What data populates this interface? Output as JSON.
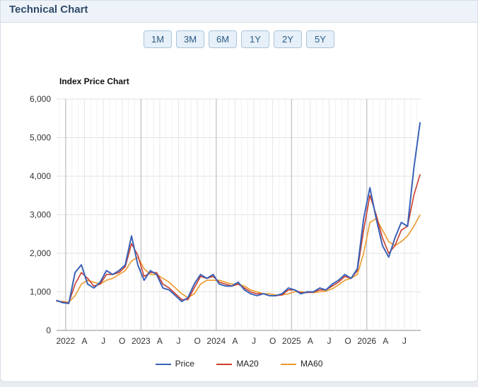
{
  "panel": {
    "title": "Technical Chart"
  },
  "ranges": [
    "1M",
    "3M",
    "6M",
    "1Y",
    "2Y",
    "5Y"
  ],
  "chart_data": {
    "type": "line",
    "title": "Index Price Chart",
    "xlabel": "",
    "ylabel": "",
    "ylim": [
      0,
      6000
    ],
    "y_ticks": [
      "0",
      "1,000",
      "2,000",
      "3,000",
      "4,000",
      "5,000",
      "6,000"
    ],
    "x_ticks": [
      "2022",
      "A",
      "J",
      "O",
      "2023",
      "A",
      "J",
      "O",
      "2024",
      "A",
      "J",
      "O",
      "2025",
      "A",
      "J",
      "O",
      "2026",
      "A",
      "J"
    ],
    "x_range": [
      "2021-11",
      "2026-09"
    ],
    "grid": true,
    "legend": "bottom",
    "colors": {
      "Price": "#3a62b8",
      "MA20": "#cc3d2c",
      "MA60": "#eb9a2a"
    },
    "x": [
      "2021-11",
      "2021-12",
      "2022-01",
      "2022-02",
      "2022-03",
      "2022-04",
      "2022-05",
      "2022-06",
      "2022-07",
      "2022-08",
      "2022-09",
      "2022-10",
      "2022-11",
      "2022-12",
      "2023-01",
      "2023-02",
      "2023-03",
      "2023-04",
      "2023-05",
      "2023-06",
      "2023-07",
      "2023-08",
      "2023-09",
      "2023-10",
      "2023-11",
      "2023-12",
      "2024-01",
      "2024-02",
      "2024-03",
      "2024-04",
      "2024-05",
      "2024-06",
      "2024-07",
      "2024-08",
      "2024-09",
      "2024-10",
      "2024-11",
      "2024-12",
      "2025-01",
      "2025-02",
      "2025-03",
      "2025-04",
      "2025-05",
      "2025-06",
      "2025-07",
      "2025-08",
      "2025-09",
      "2025-10",
      "2025-11",
      "2025-12",
      "2026-01",
      "2026-02",
      "2026-03",
      "2026-04",
      "2026-05",
      "2026-06",
      "2026-07",
      "2026-08",
      "2026-09"
    ],
    "series": [
      {
        "name": "Price",
        "values": [
          780,
          720,
          700,
          1500,
          1700,
          1200,
          1100,
          1250,
          1550,
          1450,
          1550,
          1700,
          2450,
          1700,
          1300,
          1550,
          1450,
          1100,
          1050,
          900,
          750,
          850,
          1200,
          1450,
          1350,
          1450,
          1200,
          1150,
          1150,
          1250,
          1050,
          950,
          900,
          950,
          900,
          900,
          950,
          1100,
          1050,
          950,
          1000,
          1000,
          1100,
          1050,
          1200,
          1300,
          1450,
          1350,
          1600,
          2900,
          3700,
          2900,
          2200,
          1900,
          2400,
          2800,
          2700,
          4200,
          5400
        ]
      },
      {
        "name": "MA20",
        "values": [
          760,
          740,
          710,
          1200,
          1500,
          1350,
          1150,
          1200,
          1450,
          1450,
          1500,
          1650,
          2250,
          1950,
          1400,
          1500,
          1500,
          1200,
          1100,
          950,
          800,
          800,
          1100,
          1400,
          1350,
          1400,
          1250,
          1200,
          1150,
          1200,
          1100,
          1000,
          950,
          950,
          900,
          900,
          920,
          1050,
          1050,
          980,
          980,
          990,
          1050,
          1050,
          1150,
          1250,
          1400,
          1350,
          1550,
          2600,
          3500,
          3000,
          2400,
          2000,
          2200,
          2600,
          2700,
          3500,
          4050
        ]
      },
      {
        "name": "MA60",
        "values": [
          760,
          750,
          730,
          900,
          1200,
          1300,
          1250,
          1200,
          1300,
          1350,
          1450,
          1550,
          1800,
          1900,
          1600,
          1450,
          1450,
          1350,
          1250,
          1100,
          950,
          850,
          950,
          1200,
          1300,
          1300,
          1300,
          1250,
          1200,
          1200,
          1150,
          1050,
          1000,
          950,
          950,
          920,
          920,
          950,
          1000,
          1000,
          990,
          980,
          1000,
          1020,
          1080,
          1180,
          1300,
          1350,
          1450,
          2000,
          2800,
          2900,
          2600,
          2300,
          2200,
          2300,
          2450,
          2700,
          3000
        ]
      }
    ]
  }
}
